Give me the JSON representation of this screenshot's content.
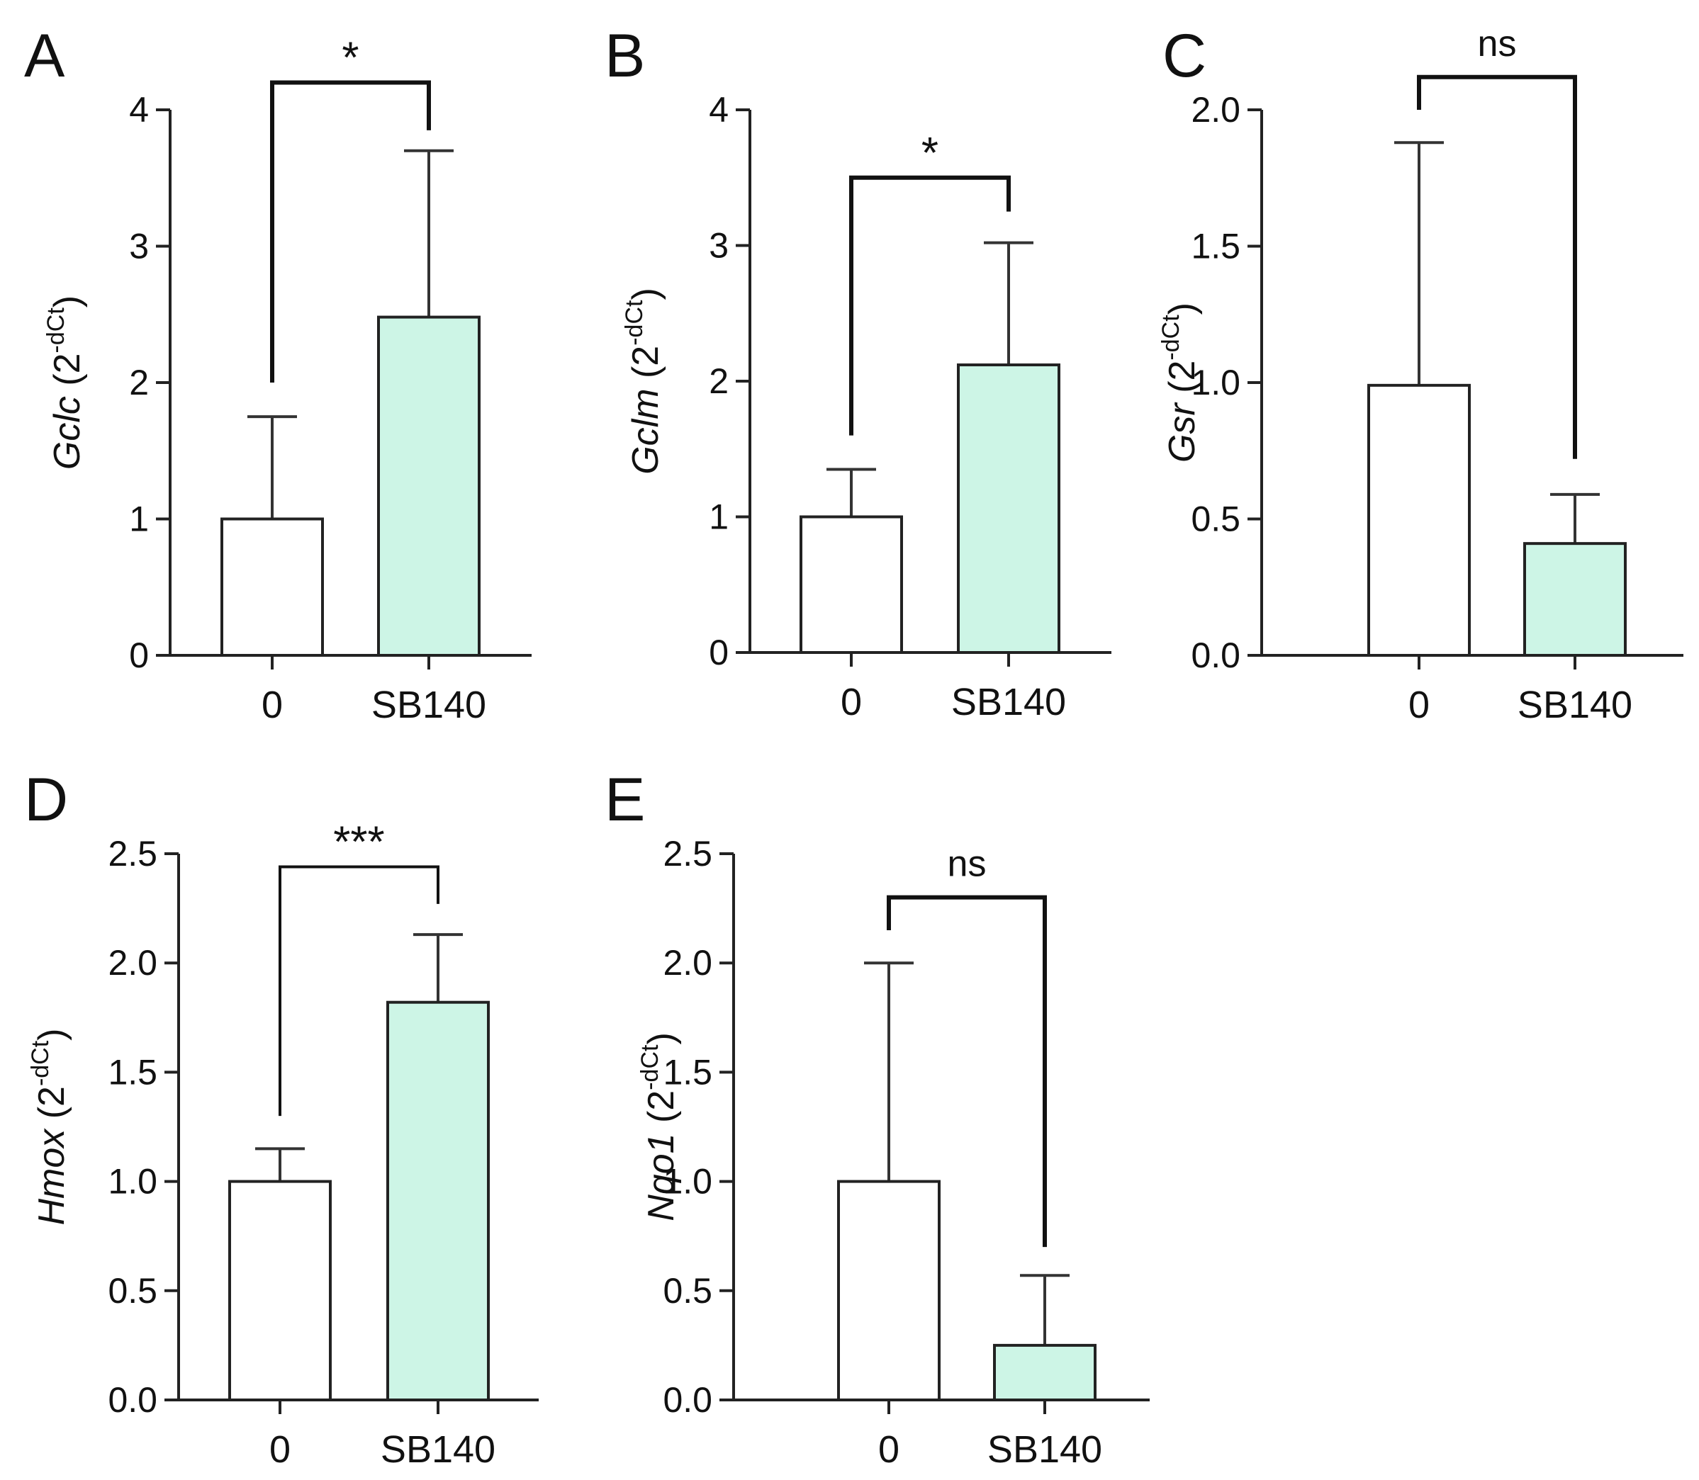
{
  "chart_data": [
    {
      "id": "A",
      "type": "bar",
      "panel_label": "A",
      "gene": "Gclc",
      "ylabel_unit": " (2",
      "ylabel_exp": "-dCt",
      "ylabel_close": ")",
      "categories": [
        "0",
        "SB140"
      ],
      "values": [
        1.0,
        2.48
      ],
      "errors": [
        0.75,
        1.22
      ],
      "bar_colors": [
        "#ffffff",
        "#cdf5e6"
      ],
      "ylim": [
        0,
        4
      ],
      "yticks": [
        "0",
        "1",
        "2",
        "3",
        "4"
      ],
      "significance": "*",
      "bracket_left_start": 2.0,
      "bracket_right_start": 3.85,
      "bracket_top": 4.2
    },
    {
      "id": "B",
      "type": "bar",
      "panel_label": "B",
      "gene": "Gclm",
      "ylabel_unit": " (2",
      "ylabel_exp": "-dCt",
      "ylabel_close": ")",
      "categories": [
        "0",
        "SB140"
      ],
      "values": [
        1.0,
        2.12
      ],
      "errors": [
        0.35,
        0.9
      ],
      "bar_colors": [
        "#ffffff",
        "#cdf5e6"
      ],
      "ylim": [
        0,
        4
      ],
      "yticks": [
        "0",
        "1",
        "2",
        "3",
        "4"
      ],
      "significance": "*",
      "bracket_left_start": 1.6,
      "bracket_right_start": 3.25,
      "bracket_top": 3.5
    },
    {
      "id": "C",
      "type": "bar",
      "panel_label": "C",
      "gene": "Gsr",
      "ylabel_unit": " (2",
      "ylabel_exp": "-dCt",
      "ylabel_close": ")",
      "categories": [
        "0",
        "SB140"
      ],
      "values": [
        0.99,
        0.41
      ],
      "errors": [
        0.89,
        0.18
      ],
      "bar_colors": [
        "#ffffff",
        "#cdf5e6"
      ],
      "ylim": [
        0,
        2
      ],
      "yticks": [
        "0.0",
        "0.5",
        "1.0",
        "1.5",
        "2.0"
      ],
      "significance": "ns",
      "bracket_left_start": 2.0,
      "bracket_right_start": 0.72,
      "bracket_top": 2.12
    },
    {
      "id": "D",
      "type": "bar",
      "panel_label": "D",
      "gene": "Hmox",
      "ylabel_unit": " (2",
      "ylabel_exp": "-dCt",
      "ylabel_close": ")",
      "categories": [
        "0",
        "SB140"
      ],
      "values": [
        1.0,
        1.82
      ],
      "errors": [
        0.15,
        0.31
      ],
      "bar_colors": [
        "#ffffff",
        "#cdf5e6"
      ],
      "ylim": [
        0,
        2.5
      ],
      "yticks": [
        "0.0",
        "0.5",
        "1.0",
        "1.5",
        "2.0",
        "2.5"
      ],
      "significance": "***",
      "bracket_left_start": 1.3,
      "bracket_right_start": 2.27,
      "bracket_top": 2.44
    },
    {
      "id": "E",
      "type": "bar",
      "panel_label": "E",
      "gene": "Nqo1",
      "ylabel_unit": " (2",
      "ylabel_exp": "-dCt",
      "ylabel_close": ")",
      "categories": [
        "0",
        "SB140"
      ],
      "values": [
        1.0,
        0.25
      ],
      "errors": [
        1.0,
        0.32
      ],
      "bar_colors": [
        "#ffffff",
        "#cdf5e6"
      ],
      "ylim": [
        0,
        2.5
      ],
      "yticks": [
        "0.0",
        "0.5",
        "1.0",
        "1.5",
        "2.0",
        "2.5"
      ],
      "significance": "ns",
      "bracket_left_start": 2.15,
      "bracket_right_start": 0.7,
      "bracket_top": 2.3
    }
  ]
}
